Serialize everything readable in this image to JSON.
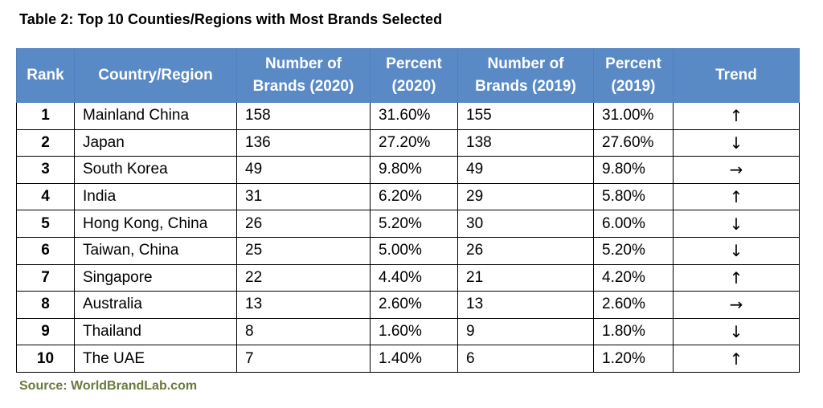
{
  "title": "Table 2: Top 10 Counties/Regions with Most Brands Selected",
  "table": {
    "headers": {
      "rank": "Rank",
      "country": "Country/Region",
      "brands2020": [
        "Number of",
        "Brands (2020)"
      ],
      "percent2020": [
        "Percent",
        "(2020)"
      ],
      "brands2019": [
        "Number of",
        "Brands (2019)"
      ],
      "percent2019": [
        "Percent",
        "(2019)"
      ],
      "trend": "Trend"
    },
    "rows": [
      {
        "rank": "1",
        "country": "Mainland China",
        "brands2020": "158",
        "percent2020": "31.60%",
        "brands2019": "155",
        "percent2019": "31.00%",
        "trend": "↑",
        "trend_icon": "arrow-up-icon"
      },
      {
        "rank": "2",
        "country": "Japan",
        "brands2020": "136",
        "percent2020": "27.20%",
        "brands2019": "138",
        "percent2019": "27.60%",
        "trend": "↓",
        "trend_icon": "arrow-down-icon"
      },
      {
        "rank": "3",
        "country": "South Korea",
        "brands2020": "49",
        "percent2020": "9.80%",
        "brands2019": "49",
        "percent2019": "9.80%",
        "trend": "→",
        "trend_icon": "arrow-right-icon"
      },
      {
        "rank": "4",
        "country": "India",
        "brands2020": "31",
        "percent2020": "6.20%",
        "brands2019": "29",
        "percent2019": "5.80%",
        "trend": "↑",
        "trend_icon": "arrow-up-icon"
      },
      {
        "rank": "5",
        "country": "Hong Kong, China",
        "brands2020": "26",
        "percent2020": "5.20%",
        "brands2019": "30",
        "percent2019": "6.00%",
        "trend": "↓",
        "trend_icon": "arrow-down-icon"
      },
      {
        "rank": "6",
        "country": "Taiwan, China",
        "brands2020": "25",
        "percent2020": "5.00%",
        "brands2019": "26",
        "percent2019": "5.20%",
        "trend": "↓",
        "trend_icon": "arrow-down-icon"
      },
      {
        "rank": "7",
        "country": "Singapore",
        "brands2020": "22",
        "percent2020": "4.40%",
        "brands2019": "21",
        "percent2019": "4.20%",
        "trend": "↑",
        "trend_icon": "arrow-up-icon"
      },
      {
        "rank": "8",
        "country": "Australia",
        "brands2020": "13",
        "percent2020": "2.60%",
        "brands2019": "13",
        "percent2019": "2.60%",
        "trend": "→",
        "trend_icon": "arrow-right-icon"
      },
      {
        "rank": "9",
        "country": "Thailand",
        "brands2020": "8",
        "percent2020": "1.60%",
        "brands2019": "9",
        "percent2019": "1.80%",
        "trend": "↓",
        "trend_icon": "arrow-down-icon"
      },
      {
        "rank": "10",
        "country": "The UAE",
        "brands2020": "7",
        "percent2020": "1.40%",
        "brands2019": "6",
        "percent2019": "1.20%",
        "trend": "↑",
        "trend_icon": "arrow-up-icon"
      }
    ]
  },
  "source": "Source: WorldBrandLab.com",
  "colors": {
    "header_bg": "#5a8ac6",
    "header_text": "#ffffff",
    "source_text": "#6b7a3c"
  }
}
